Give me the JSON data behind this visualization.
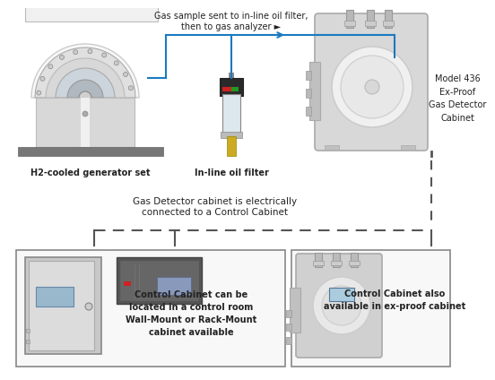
{
  "bg_color": "#ffffff",
  "blue_line_color": "#1a7abf",
  "dashed_line_color": "#555555",
  "title_top": "Gas sample sent to in-line oil filter,\nthen to gas analyzer ►",
  "label_generator": "H2-cooled generator set",
  "label_filter": "In-line oil filter",
  "label_model": "Model 436\nEx-Proof\nGas Detector\nCabinet",
  "label_middle": "Gas Detector cabinet is electrically\nconnected to a Control Cabinet",
  "label_control_left": "Control Cabinet can be\nlocated in a control room\nWall-Mount or Rack-Mount\ncabinet available",
  "label_control_right": "Control Cabinet also\navailable in ex-proof cabinet",
  "font_size_label": 7,
  "font_size_top": 7,
  "font_size_middle": 7.5
}
